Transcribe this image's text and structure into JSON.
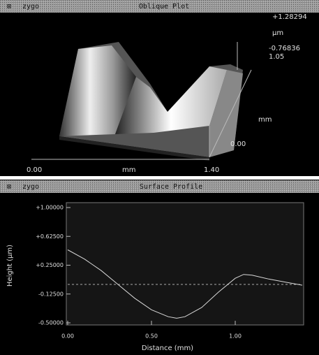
{
  "oblique_plot": {
    "brand": "zygo",
    "title": "Oblique Plot",
    "z_max": "+1.28294",
    "z_unit": "µm",
    "z_min": "-0.76836",
    "y_max": "1.05",
    "y_unit": "mm",
    "y_min": "0.00",
    "x_min": "0.00",
    "x_unit": "mm",
    "x_max": "1.40"
  },
  "profile_panel": {
    "brand": "zygo"
  },
  "chart_data": {
    "type": "line",
    "title": "Surface Profile",
    "x_label": "Distance (mm)",
    "y_label": "Height (µm)",
    "x": [
      0,
      0.1,
      0.2,
      0.3,
      0.4,
      0.5,
      0.6,
      0.65,
      0.7,
      0.8,
      0.9,
      1.0,
      1.05,
      1.1,
      1.2,
      1.3,
      1.4
    ],
    "values": [
      0.45,
      0.33,
      0.18,
      0.0,
      -0.18,
      -0.33,
      -0.42,
      -0.44,
      -0.42,
      -0.3,
      -0.1,
      0.08,
      0.13,
      0.12,
      0.07,
      0.03,
      -0.01
    ],
    "color": "#d8d8d8",
    "reference_line": 0,
    "xlim": [
      0,
      1.4
    ],
    "ylim": [
      -0.5,
      1.0
    ],
    "xticks": [
      {
        "value": 0,
        "label": "0.00"
      },
      {
        "value": 0.5,
        "label": "0.50"
      },
      {
        "value": 1.0,
        "label": "1.00"
      }
    ],
    "yticks": [
      {
        "value": 1.0,
        "label": "+1.00000"
      },
      {
        "value": 0.625,
        "label": "+0.62500"
      },
      {
        "value": 0.25,
        "label": "+0.25000"
      },
      {
        "value": -0.125,
        "label": "-0.12500"
      },
      {
        "value": -0.5,
        "label": "-0.50000"
      }
    ]
  }
}
